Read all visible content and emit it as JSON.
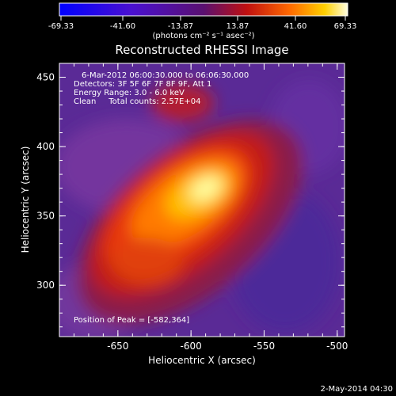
{
  "colorbar": {
    "ticks": [
      "-69.33",
      "-41.60",
      "-13.87",
      "13.87",
      "41.60",
      "69.33"
    ],
    "unit_label": "(photons cm⁻² s⁻¹ asec⁻²)"
  },
  "plot": {
    "title": "Reconstructed RHESSI Image",
    "annotations": [
      "6-Mar-2012 06:00:30.000 to 06:06:30.000",
      "Detectors: 3F 5F 6F 7F 8F 9F, Att 1",
      "Energy Range: 3.0 - 6.0 keV",
      "Clean     Total counts: 2.57E+04"
    ],
    "peak_label": "Position of Peak = [-582,364]",
    "xlabel": "Heliocentric X (arcsec)",
    "ylabel": "Heliocentric Y (arcsec)",
    "xticks": [
      "-650",
      "-600",
      "-550",
      "-500"
    ],
    "yticks": [
      "300",
      "350",
      "400",
      "450"
    ],
    "axis_color": "#ffffff",
    "background_color": "#000000",
    "colormap": "blue-purple-red-yellow-white"
  },
  "footer": {
    "timestamp": "2-May-2014 04:30"
  }
}
